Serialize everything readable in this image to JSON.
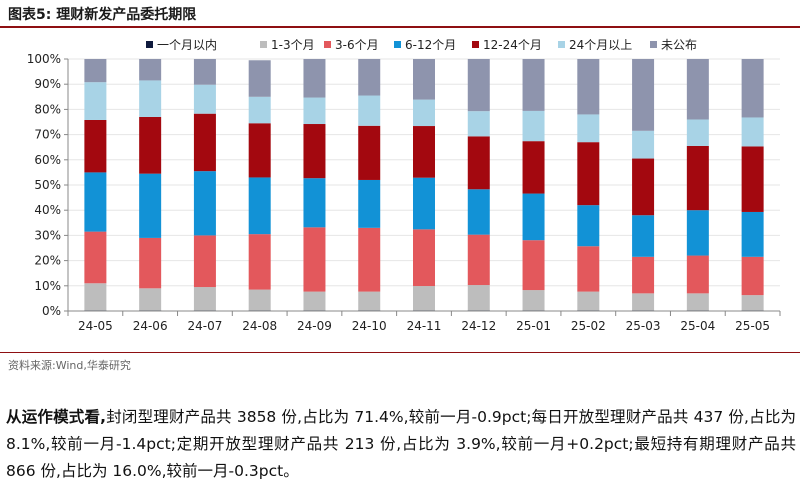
{
  "figure": {
    "title": "图表5:  理财新发产品委托期限",
    "source": "资料来源:Wind,华泰研究"
  },
  "chart_data": {
    "type": "bar",
    "stacked": true,
    "categories": [
      "24-05",
      "24-06",
      "24-07",
      "24-08",
      "24-09",
      "24-10",
      "24-11",
      "24-12",
      "25-01",
      "25-02",
      "25-03",
      "25-04",
      "25-05"
    ],
    "ylim": [
      0,
      100
    ],
    "yticks": [
      "0%",
      "10%",
      "20%",
      "30%",
      "40%",
      "50%",
      "60%",
      "70%",
      "80%",
      "90%",
      "100%"
    ],
    "legend_position": "top",
    "series": [
      {
        "name": "一个月以内",
        "color": "#0f1a3d",
        "values": [
          0.3,
          0.3,
          0.3,
          0.3,
          0.3,
          0.3,
          0.3,
          0.3,
          0.3,
          0.3,
          0.3,
          0.3,
          0.3
        ]
      },
      {
        "name": "1-3个月",
        "color": "#bdbdbd",
        "values": [
          10.7,
          8.7,
          9.2,
          8.2,
          7.4,
          7.4,
          9.6,
          10.0,
          8.0,
          7.4,
          6.7,
          6.7,
          6.0
        ]
      },
      {
        "name": "3-6个月",
        "color": "#e3585c",
        "values": [
          20.5,
          20.0,
          20.5,
          22.0,
          25.5,
          25.3,
          22.5,
          20.0,
          19.8,
          18.0,
          14.5,
          15.0,
          15.2
        ]
      },
      {
        "name": "6-12个月",
        "color": "#1292d6",
        "values": [
          23.5,
          25.5,
          25.5,
          22.5,
          19.5,
          19.0,
          20.5,
          18.0,
          18.5,
          16.3,
          16.5,
          18.0,
          17.8
        ]
      },
      {
        "name": "12-24个月",
        "color": "#a3080f",
        "values": [
          20.8,
          22.5,
          22.8,
          21.5,
          21.5,
          21.5,
          20.5,
          21.0,
          20.8,
          25.0,
          22.5,
          25.5,
          26.0
        ]
      },
      {
        "name": "24个月以上",
        "color": "#a8d3e6",
        "values": [
          15.0,
          14.5,
          11.5,
          10.5,
          10.5,
          12.0,
          10.5,
          10.0,
          12.0,
          11.0,
          11.0,
          10.5,
          11.5
        ]
      },
      {
        "name": "未公布",
        "color": "#8e94ad",
        "values": [
          9.2,
          8.5,
          10.2,
          14.5,
          15.3,
          14.5,
          16.1,
          20.7,
          20.6,
          22.0,
          28.5,
          24.0,
          23.2
        ]
      }
    ]
  },
  "summary": {
    "lead": "从运作模式看,",
    "text": "封闭型理财产品共 3858 份,占比为 71.4%,较前一月-0.9pct;每日开放型理财产品共 437 份,占比为 8.1%,较前一月-1.4pct;定期开放型理财产品共 213 份,占比为 3.9%,较前一月+0.2pct;最短持有期理财产品共 866 份,占比为 16.0%,较前一月-0.3pct。"
  }
}
